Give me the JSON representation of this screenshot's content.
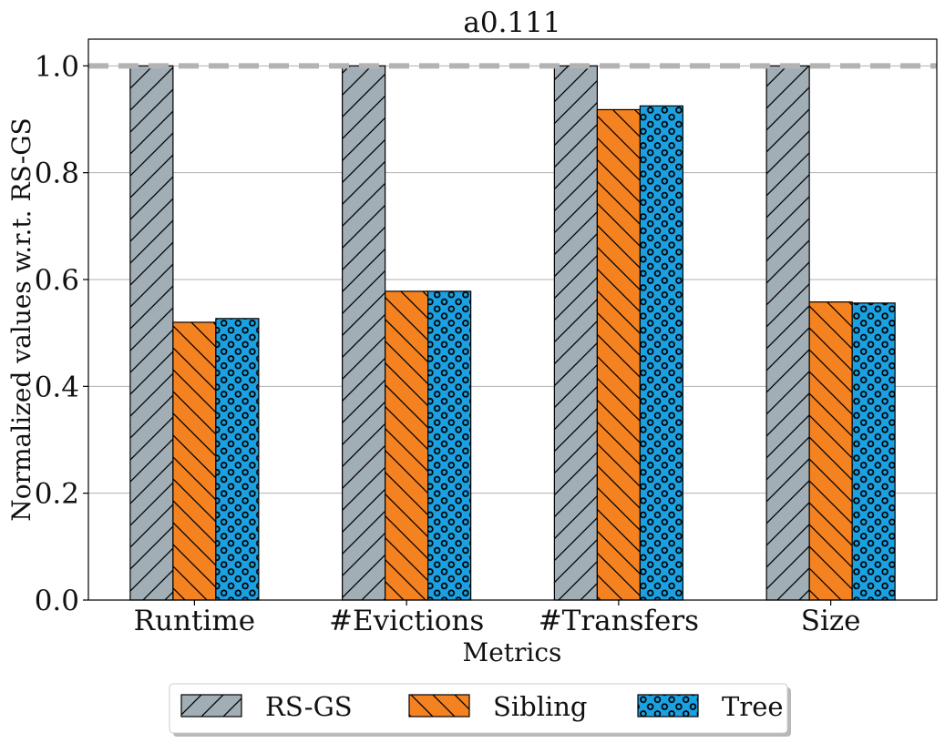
{
  "chart_data": {
    "type": "bar",
    "title": "a0.111",
    "xlabel": "Metrics",
    "ylabel": "Normalized values w.r.t.  RS-GS",
    "categories": [
      "Runtime",
      "#Evictions",
      "#Transfers",
      "Size"
    ],
    "series": [
      {
        "name": "RS-GS",
        "values": [
          1.0,
          1.0,
          1.0,
          1.0
        ],
        "color": "#a1aeb6",
        "hatch": "diagonal-forward"
      },
      {
        "name": "Sibling",
        "values": [
          0.52,
          0.578,
          0.918,
          0.558
        ],
        "color": "#f58220",
        "hatch": "diagonal-back"
      },
      {
        "name": "Tree",
        "values": [
          0.527,
          0.578,
          0.925,
          0.556
        ],
        "color": "#1ba1e2",
        "hatch": "circles"
      }
    ],
    "ylim": [
      0,
      1.05
    ],
    "yticks": [
      "0.0",
      "0.2",
      "0.4",
      "0.6",
      "0.8",
      "1.0"
    ],
    "reference_line": {
      "y": 1.0,
      "color": "#b3b3b3",
      "style": "dashed"
    },
    "grid": "horizontal",
    "legend_position": "bottom-center"
  }
}
